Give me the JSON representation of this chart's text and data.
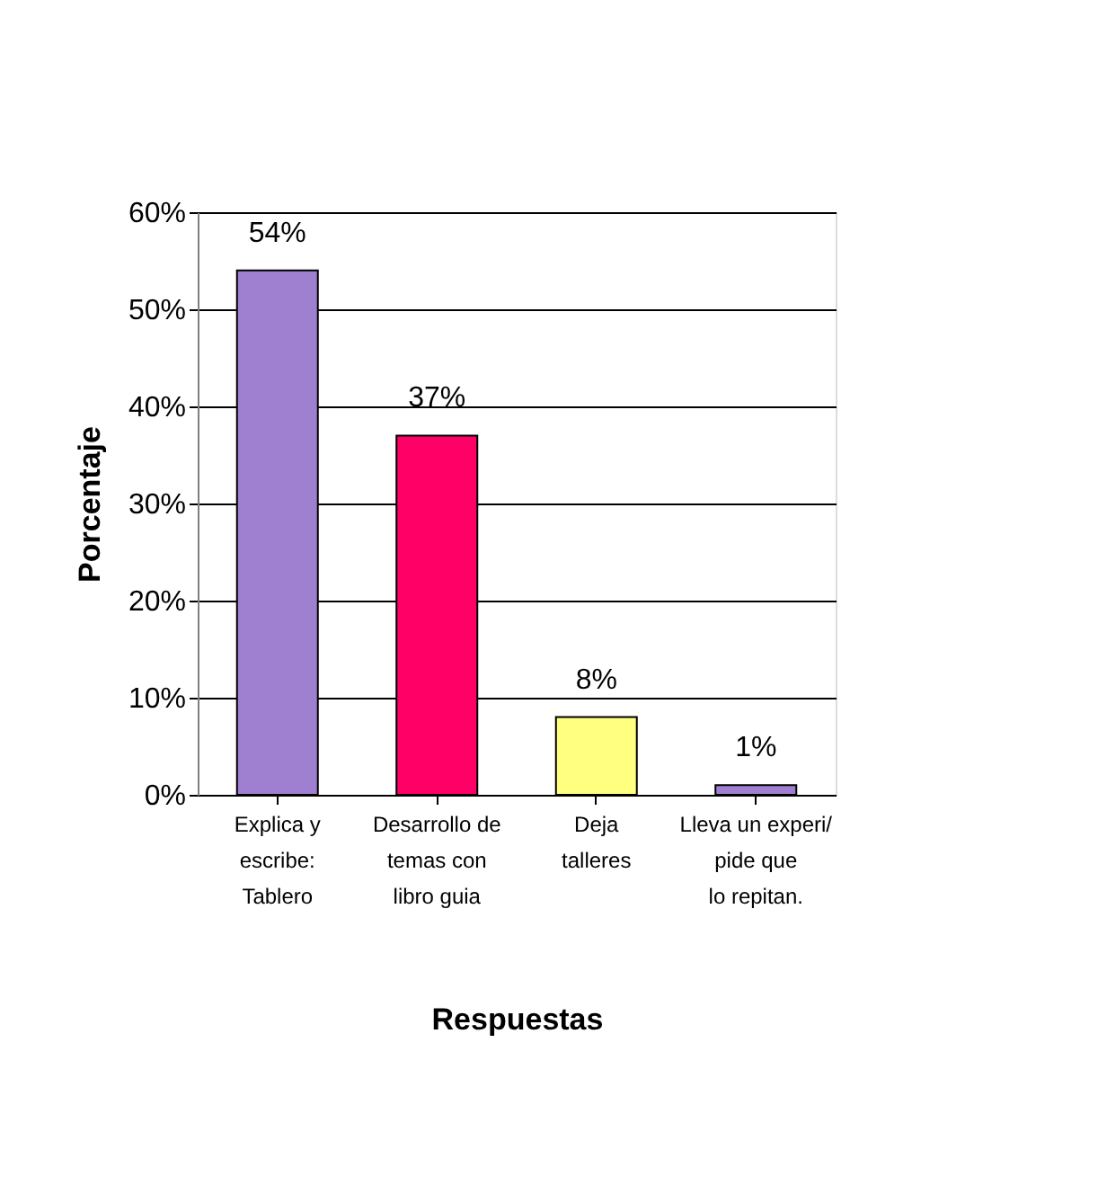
{
  "chart_data": {
    "type": "bar",
    "xlabel": "Respuestas",
    "ylabel": "Porcentaje",
    "categories": [
      "Explica y\nescribe:\nTablero",
      "Desarrollo de\ntemas con\nlibro guia",
      "Deja\ntalleres",
      "Lleva un experi/\npide que\nlo repitan."
    ],
    "values": [
      54,
      37,
      8,
      1
    ],
    "colors": [
      "#9f7fd0",
      "#ff0066",
      "#ffff80",
      "#9f7fd0"
    ],
    "value_labels": [
      "54%",
      "37%",
      "8%",
      "1%"
    ],
    "ylim": [
      0,
      60
    ],
    "yticks": [
      {
        "value": 0,
        "label": "0%"
      },
      {
        "value": 10,
        "label": "10%"
      },
      {
        "value": 20,
        "label": "20%"
      },
      {
        "value": 30,
        "label": "30%"
      },
      {
        "value": 40,
        "label": "40%"
      },
      {
        "value": 50,
        "label": "50%"
      },
      {
        "value": 60,
        "label": "60%"
      }
    ],
    "grid": "y"
  }
}
